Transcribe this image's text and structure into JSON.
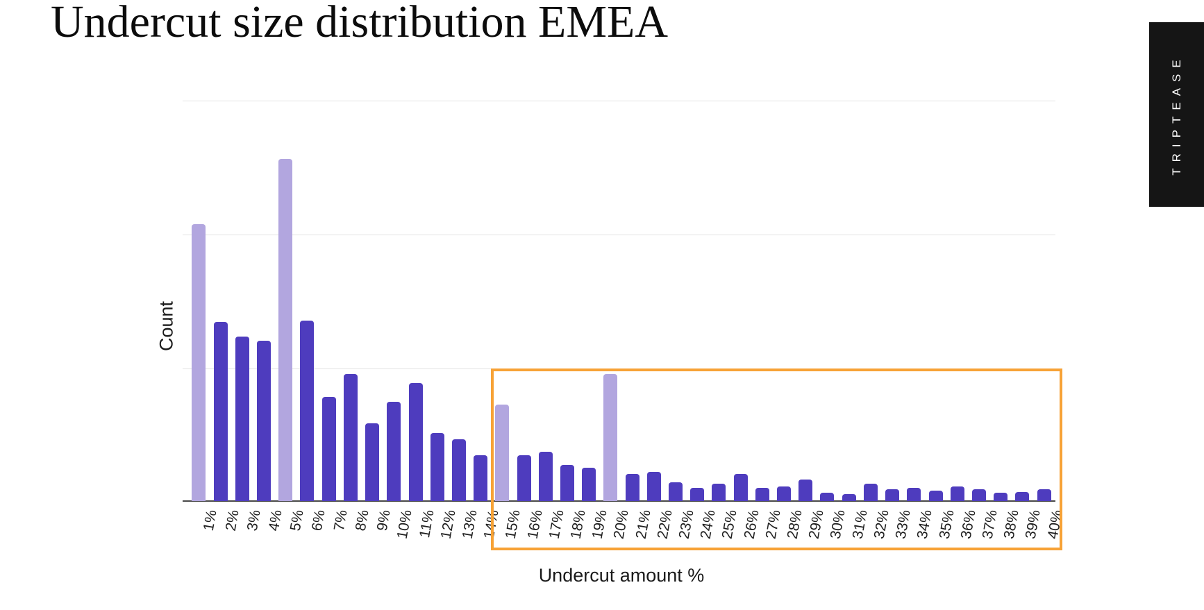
{
  "title": "Undercut size distribution EMEA",
  "brand": {
    "label": "TRIPTEASE",
    "background": "#151515",
    "text_color": "#ffffff"
  },
  "chart_data": {
    "type": "bar",
    "title": "Undercut size distribution EMEA",
    "xlabel": "Undercut amount %",
    "ylabel": "Count",
    "y_axis_note": "no numeric tick labels shown; values are relative units where 1.0 = one horizontal gridline interval",
    "ylim": [
      0,
      3
    ],
    "gridlines_y": [
      1,
      2,
      3
    ],
    "grid": "horizontal",
    "legend": "none",
    "categories": [
      "1%",
      "2%",
      "3%",
      "4%",
      "5%",
      "6%",
      "7%",
      "8%",
      "9%",
      "10%",
      "11%",
      "12%",
      "13%",
      "14%",
      "15%",
      "16%",
      "17%",
      "18%",
      "19%",
      "20%",
      "21%",
      "22%",
      "23%",
      "24%",
      "25%",
      "26%",
      "27%",
      "28%",
      "29%",
      "30%",
      "31%",
      "32%",
      "33%",
      "34%",
      "35%",
      "36%",
      "37%",
      "38%",
      "39%",
      "40%"
    ],
    "values": [
      2.07,
      1.34,
      1.23,
      1.2,
      2.56,
      1.35,
      0.78,
      0.95,
      0.58,
      0.74,
      0.88,
      0.51,
      0.46,
      0.34,
      0.72,
      0.34,
      0.37,
      0.27,
      0.25,
      0.95,
      0.2,
      0.22,
      0.14,
      0.1,
      0.13,
      0.2,
      0.1,
      0.11,
      0.16,
      0.06,
      0.05,
      0.13,
      0.09,
      0.1,
      0.08,
      0.11,
      0.09,
      0.06,
      0.07,
      0.09
    ],
    "light_highlight_categories": [
      "1%",
      "5%",
      "15%",
      "20%"
    ],
    "colors": {
      "bar_dark": "#4e3cbe",
      "bar_light": "#b2a6df",
      "gridline": "#e2e2e2",
      "axis_line": "#484848",
      "annotation_orange": "#f7a236"
    },
    "annotation": {
      "type": "box",
      "from_category": "15%",
      "to_category": "40%",
      "color": "#f7a236"
    }
  }
}
